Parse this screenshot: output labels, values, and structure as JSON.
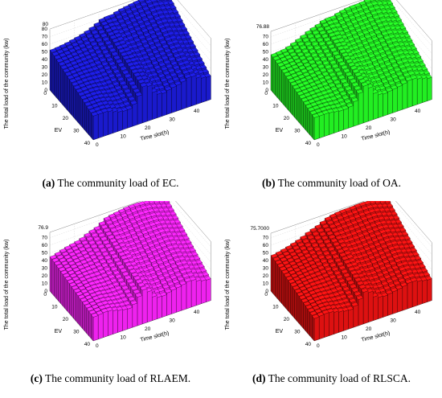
{
  "figure": {
    "panels": [
      {
        "tag": "(a)",
        "caption": "The community load of EC.",
        "color": "#1a1acc",
        "zmax_label": "80"
      },
      {
        "tag": "(b)",
        "caption": "The community load of OA.",
        "color": "#22ee22",
        "zmax_label": "76.88"
      },
      {
        "tag": "(c)",
        "caption": "The community load of RLAEM.",
        "color": "#ee22ee",
        "zmax_label": "76.9"
      },
      {
        "tag": "(d)",
        "caption": "The community load of RLSCA.",
        "color": "#dd1111",
        "zmax_label": "75.7000"
      }
    ]
  },
  "chart_data": [
    {
      "type": "bar3d",
      "title": "The community load of EC.",
      "xlabel": "EV",
      "ylabel": "Time slot(h)",
      "zlabel": "The total load of the community (kw)",
      "x_ticks": [
        10,
        20,
        30,
        40
      ],
      "y_ticks": [
        0,
        10,
        20,
        30,
        40
      ],
      "z_ticks": [
        0,
        10,
        20,
        30,
        40,
        50,
        60,
        70,
        80
      ],
      "xlim": [
        0,
        40
      ],
      "ylim": [
        0,
        48
      ],
      "zlim": [
        0,
        80
      ],
      "color": "#1a1acc",
      "profile_time": [
        0,
        6,
        12,
        16,
        20,
        22,
        24,
        28,
        32,
        36,
        40,
        44,
        48
      ],
      "profile_load_front": [
        30,
        30,
        22,
        22,
        40,
        52,
        36,
        26,
        30,
        32,
        38,
        30,
        28
      ],
      "profile_load_back": [
        52,
        54,
        58,
        62,
        68,
        72,
        70,
        74,
        76,
        78,
        80,
        78,
        74
      ]
    },
    {
      "type": "bar3d",
      "title": "The community load of OA.",
      "xlabel": "EV",
      "ylabel": "Time slot(h)",
      "zlabel": "The total load of the community (kw)",
      "x_ticks": [
        10,
        20,
        30,
        40
      ],
      "y_ticks": [
        0,
        10,
        20,
        30,
        40
      ],
      "z_ticks": [
        0,
        10,
        20,
        30,
        40,
        50,
        60,
        70
      ],
      "xlim": [
        0,
        40
      ],
      "ylim": [
        0,
        48
      ],
      "zlim": [
        0,
        76.88
      ],
      "color": "#22ee22",
      "profile_time": [
        0,
        6,
        12,
        16,
        20,
        22,
        24,
        28,
        32,
        36,
        40,
        44,
        48
      ],
      "profile_load_front": [
        28,
        28,
        24,
        26,
        44,
        50,
        34,
        26,
        28,
        30,
        34,
        30,
        26
      ],
      "profile_load_back": [
        46,
        48,
        56,
        62,
        66,
        70,
        68,
        72,
        74,
        74,
        76,
        72,
        68
      ]
    },
    {
      "type": "bar3d",
      "title": "The community load of RLAEM.",
      "xlabel": "EV",
      "ylabel": "Time slot(h)",
      "zlabel": "The total load of the community (kw)",
      "x_ticks": [
        10,
        20,
        30,
        40
      ],
      "y_ticks": [
        0,
        10,
        20,
        30,
        40
      ],
      "z_ticks": [
        0,
        10,
        20,
        30,
        40,
        50,
        60,
        70
      ],
      "xlim": [
        0,
        40
      ],
      "ylim": [
        0,
        48
      ],
      "zlim": [
        0,
        76.9
      ],
      "color": "#ee22ee",
      "profile_time": [
        0,
        6,
        12,
        16,
        20,
        22,
        24,
        28,
        32,
        36,
        40,
        44,
        48
      ],
      "profile_load_front": [
        30,
        32,
        26,
        24,
        40,
        46,
        30,
        24,
        28,
        30,
        34,
        28,
        26
      ],
      "profile_load_back": [
        44,
        50,
        54,
        60,
        64,
        70,
        72,
        74,
        76,
        76,
        74,
        70,
        66
      ]
    },
    {
      "type": "bar3d",
      "title": "The community load of RLSCA.",
      "xlabel": "EV",
      "ylabel": "Time slot(h)",
      "zlabel": "The total load of the community (kw)",
      "x_ticks": [
        10,
        20,
        30,
        40
      ],
      "y_ticks": [
        0,
        10,
        20,
        30,
        40
      ],
      "z_ticks": [
        0,
        10,
        20,
        30,
        40,
        50,
        60,
        70
      ],
      "xlim": [
        0,
        40
      ],
      "ylim": [
        0,
        48
      ],
      "zlim": [
        0,
        75.7
      ],
      "color": "#dd1111",
      "profile_time": [
        0,
        6,
        12,
        16,
        20,
        22,
        24,
        28,
        32,
        36,
        40,
        44,
        48
      ],
      "profile_load_front": [
        28,
        30,
        24,
        22,
        36,
        44,
        30,
        24,
        26,
        28,
        32,
        28,
        26
      ],
      "profile_load_back": [
        46,
        50,
        56,
        62,
        66,
        70,
        72,
        74,
        74,
        75,
        74,
        70,
        66
      ]
    }
  ]
}
